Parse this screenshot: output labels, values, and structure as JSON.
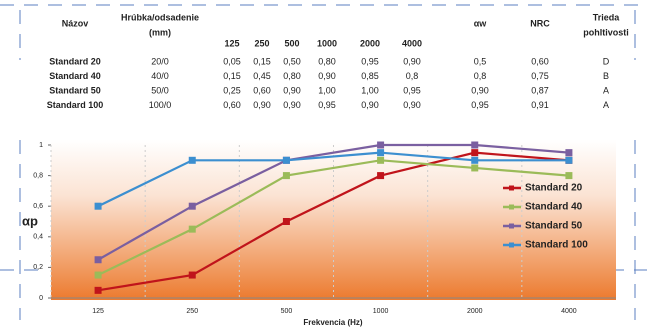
{
  "table": {
    "header": [
      [
        "Názov"
      ],
      [
        "Hrúbka/odsadenie",
        "(mm)"
      ],
      [
        "125"
      ],
      [
        "250"
      ],
      [
        "500"
      ],
      [
        "1000"
      ],
      [
        "2000"
      ],
      [
        "4000"
      ],
      [
        "αw"
      ],
      [
        "NRC"
      ],
      [
        "Trieda",
        "pohltivosti"
      ]
    ],
    "rows": [
      [
        "Standard 20",
        "20/0",
        "0,05",
        "0,15",
        "0,50",
        "0,80",
        "0,95",
        "0,90",
        "0,5",
        "0,60",
        "D"
      ],
      [
        "Standard 40",
        "40/0",
        "0,15",
        "0,45",
        "0,80",
        "0,90",
        "0,85",
        "0,8",
        "0,8",
        "0,75",
        "B"
      ],
      [
        "Standard 50",
        "50/0",
        "0,25",
        "0,60",
        "0,90",
        "1,00",
        "1,00",
        "0,95",
        "0,90",
        "0,87",
        "A"
      ],
      [
        "Standard 100",
        "100/0",
        "0,60",
        "0,90",
        "0,90",
        "0,95",
        "0,90",
        "0,90",
        "0,95",
        "0,91",
        "A"
      ]
    ]
  },
  "chart_data": {
    "type": "line",
    "x_label": "Frekvencia (Hz)",
    "y_label": "αp",
    "categories": [
      "125",
      "250",
      "500",
      "1000",
      "2000",
      "4000"
    ],
    "ylim": [
      0,
      1
    ],
    "yticks": [
      0,
      {
        "value": 0.2,
        "label": "0,2"
      },
      {
        "value": 0.4,
        "label": "0,4"
      },
      {
        "value": 0.6,
        "label": "0,6"
      },
      {
        "value": 0.8,
        "label": "0,8"
      },
      1
    ],
    "legend": "right",
    "series": [
      {
        "name": "Standard 20",
        "color": "#c0141b",
        "values": [
          0.05,
          0.15,
          0.5,
          0.8,
          0.95,
          0.9
        ]
      },
      {
        "name": "Standard 40",
        "color": "#9bbb59",
        "values": [
          0.15,
          0.45,
          0.8,
          0.9,
          0.85,
          0.8
        ]
      },
      {
        "name": "Standard 50",
        "color": "#7a5fa0",
        "values": [
          0.25,
          0.6,
          0.9,
          1.0,
          1.0,
          0.95
        ]
      },
      {
        "name": "Standard 100",
        "color": "#3c8fd0",
        "values": [
          0.6,
          0.9,
          0.9,
          0.95,
          0.9,
          0.9
        ]
      }
    ]
  }
}
